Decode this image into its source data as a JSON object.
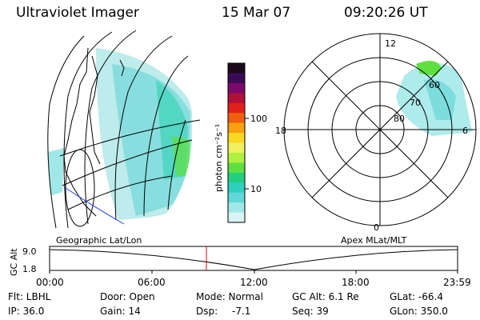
{
  "header": {
    "instrument": "Ultraviolet Imager",
    "date": "15 Mar 07",
    "time": "09:20:26 UT"
  },
  "colorbar": {
    "label": "photon cm⁻²s⁻¹",
    "ticks": [
      "100",
      "10"
    ],
    "colors": [
      "#1a0a1a",
      "#3b0a55",
      "#7a0a6a",
      "#b0103a",
      "#e0201a",
      "#f06010",
      "#f8a010",
      "#f8d820",
      "#f0f060",
      "#b0f040",
      "#60e040",
      "#20d080",
      "#30d0c0",
      "#60d8d8",
      "#a0e8e8",
      "#d8f4f4"
    ]
  },
  "polar": {
    "top_label": "12",
    "bottom_label": "0",
    "left_label": "18",
    "right_label": "6",
    "lat_labels": [
      "60",
      "70",
      "80"
    ]
  },
  "panel_titles": {
    "left": "Geographic Lat/Lon",
    "right": "Apex MLat/MLT"
  },
  "altitude_plot": {
    "ylabel": "GC Alt",
    "y_ticks": [
      "9.0",
      "1.8"
    ],
    "x_ticks": [
      "00:00",
      "06:00",
      "12:00",
      "18:00",
      "23:59"
    ],
    "marker_color": "#e00000",
    "marker_time": "09:20"
  },
  "footer": {
    "filter": "Flt: LBHL",
    "ip": "IP: 36.0",
    "door": "Door: Open",
    "gain": "Gain: 14",
    "mode": "Mode: Normal",
    "dsp_label": "Dsp:",
    "dsp_value": "-7.1",
    "gc_alt": "GC Alt: 6.1 Re",
    "seq": "Seq: 39",
    "glat": "GLat: -66.4",
    "glon": "GLon: 350.0"
  }
}
